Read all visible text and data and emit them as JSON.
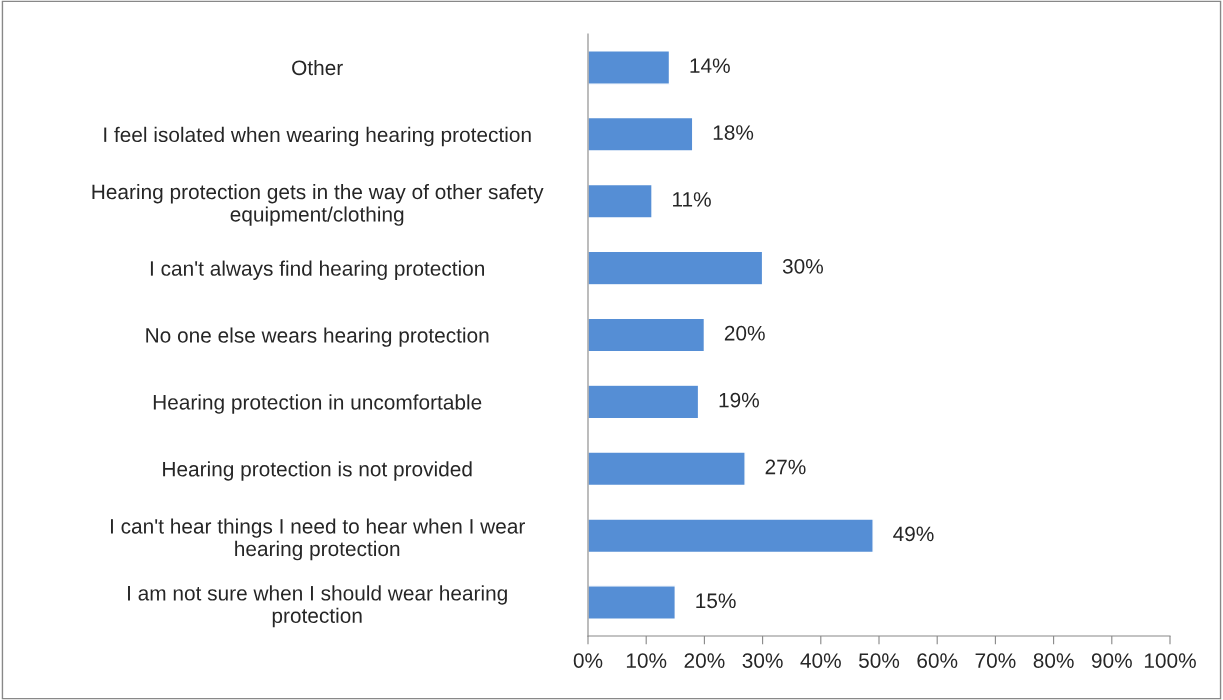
{
  "chart_data": {
    "type": "bar",
    "orientation": "horizontal",
    "categories": [
      "Other",
      "I feel isolated when wearing hearing protection",
      "Hearing protection gets in the way of other safety\nequipment/clothing",
      "I can't always find hearing protection",
      "No one else wears hearing protection",
      "Hearing protection in uncomfortable",
      "Hearing protection is not provided",
      "I can't hear things I need to hear when I wear\nhearing protection",
      "I am not sure when I should wear hearing\nprotection"
    ],
    "values": [
      14,
      18,
      11,
      30,
      20,
      19,
      27,
      49,
      15
    ],
    "value_labels": [
      "14%",
      "18%",
      "11%",
      "30%",
      "20%",
      "19%",
      "27%",
      "49%",
      "15%"
    ],
    "color": "#558ed5",
    "xlim": [
      0,
      100
    ],
    "xticks": [
      {
        "value": 0,
        "label": "0%"
      },
      {
        "value": 10,
        "label": "10%"
      },
      {
        "value": 20,
        "label": "20%"
      },
      {
        "value": 30,
        "label": "30%"
      },
      {
        "value": 40,
        "label": "40%"
      },
      {
        "value": 50,
        "label": "50%"
      },
      {
        "value": 60,
        "label": "60%"
      },
      {
        "value": 70,
        "label": "70%"
      },
      {
        "value": 80,
        "label": "80%"
      },
      {
        "value": 90,
        "label": "90%"
      },
      {
        "value": 100,
        "label": "100%"
      }
    ],
    "grid": false,
    "legend": false
  }
}
